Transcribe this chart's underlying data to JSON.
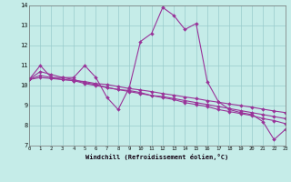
{
  "xlabel": "Windchill (Refroidissement éolien,°C)",
  "background_color": "#c5ece8",
  "grid_color": "#99cccc",
  "line_color": "#993399",
  "markersize": 2.0,
  "linewidth": 0.8,
  "xlim": [
    0,
    23
  ],
  "ylim": [
    7,
    14
  ],
  "xticks": [
    0,
    1,
    2,
    3,
    4,
    5,
    6,
    7,
    8,
    9,
    10,
    11,
    12,
    13,
    14,
    15,
    16,
    17,
    18,
    19,
    20,
    21,
    22,
    23
  ],
  "yticks": [
    7,
    8,
    9,
    10,
    11,
    12,
    13,
    14
  ],
  "series": [
    [
      10.3,
      11.0,
      10.4,
      10.4,
      10.4,
      11.0,
      10.4,
      9.4,
      8.8,
      9.9,
      12.2,
      12.6,
      13.9,
      13.5,
      12.8,
      13.1,
      10.2,
      9.2,
      8.8,
      8.65,
      8.55,
      8.2,
      7.3,
      7.8
    ],
    [
      10.3,
      10.7,
      10.55,
      10.4,
      10.3,
      10.15,
      10.05,
      9.9,
      9.8,
      9.75,
      9.65,
      9.5,
      9.4,
      9.3,
      9.15,
      9.05,
      8.95,
      8.8,
      8.7,
      8.6,
      8.5,
      8.35,
      8.25,
      8.1
    ],
    [
      10.3,
      10.5,
      10.4,
      10.3,
      10.25,
      10.1,
      10.0,
      9.9,
      9.8,
      9.7,
      9.6,
      9.5,
      9.45,
      9.35,
      9.25,
      9.15,
      9.05,
      8.95,
      8.85,
      8.75,
      8.65,
      8.55,
      8.45,
      8.35
    ],
    [
      10.3,
      10.4,
      10.35,
      10.3,
      10.25,
      10.2,
      10.1,
      10.05,
      9.95,
      9.85,
      9.78,
      9.7,
      9.6,
      9.52,
      9.43,
      9.35,
      9.25,
      9.17,
      9.08,
      9.0,
      8.92,
      8.82,
      8.73,
      8.65
    ]
  ]
}
